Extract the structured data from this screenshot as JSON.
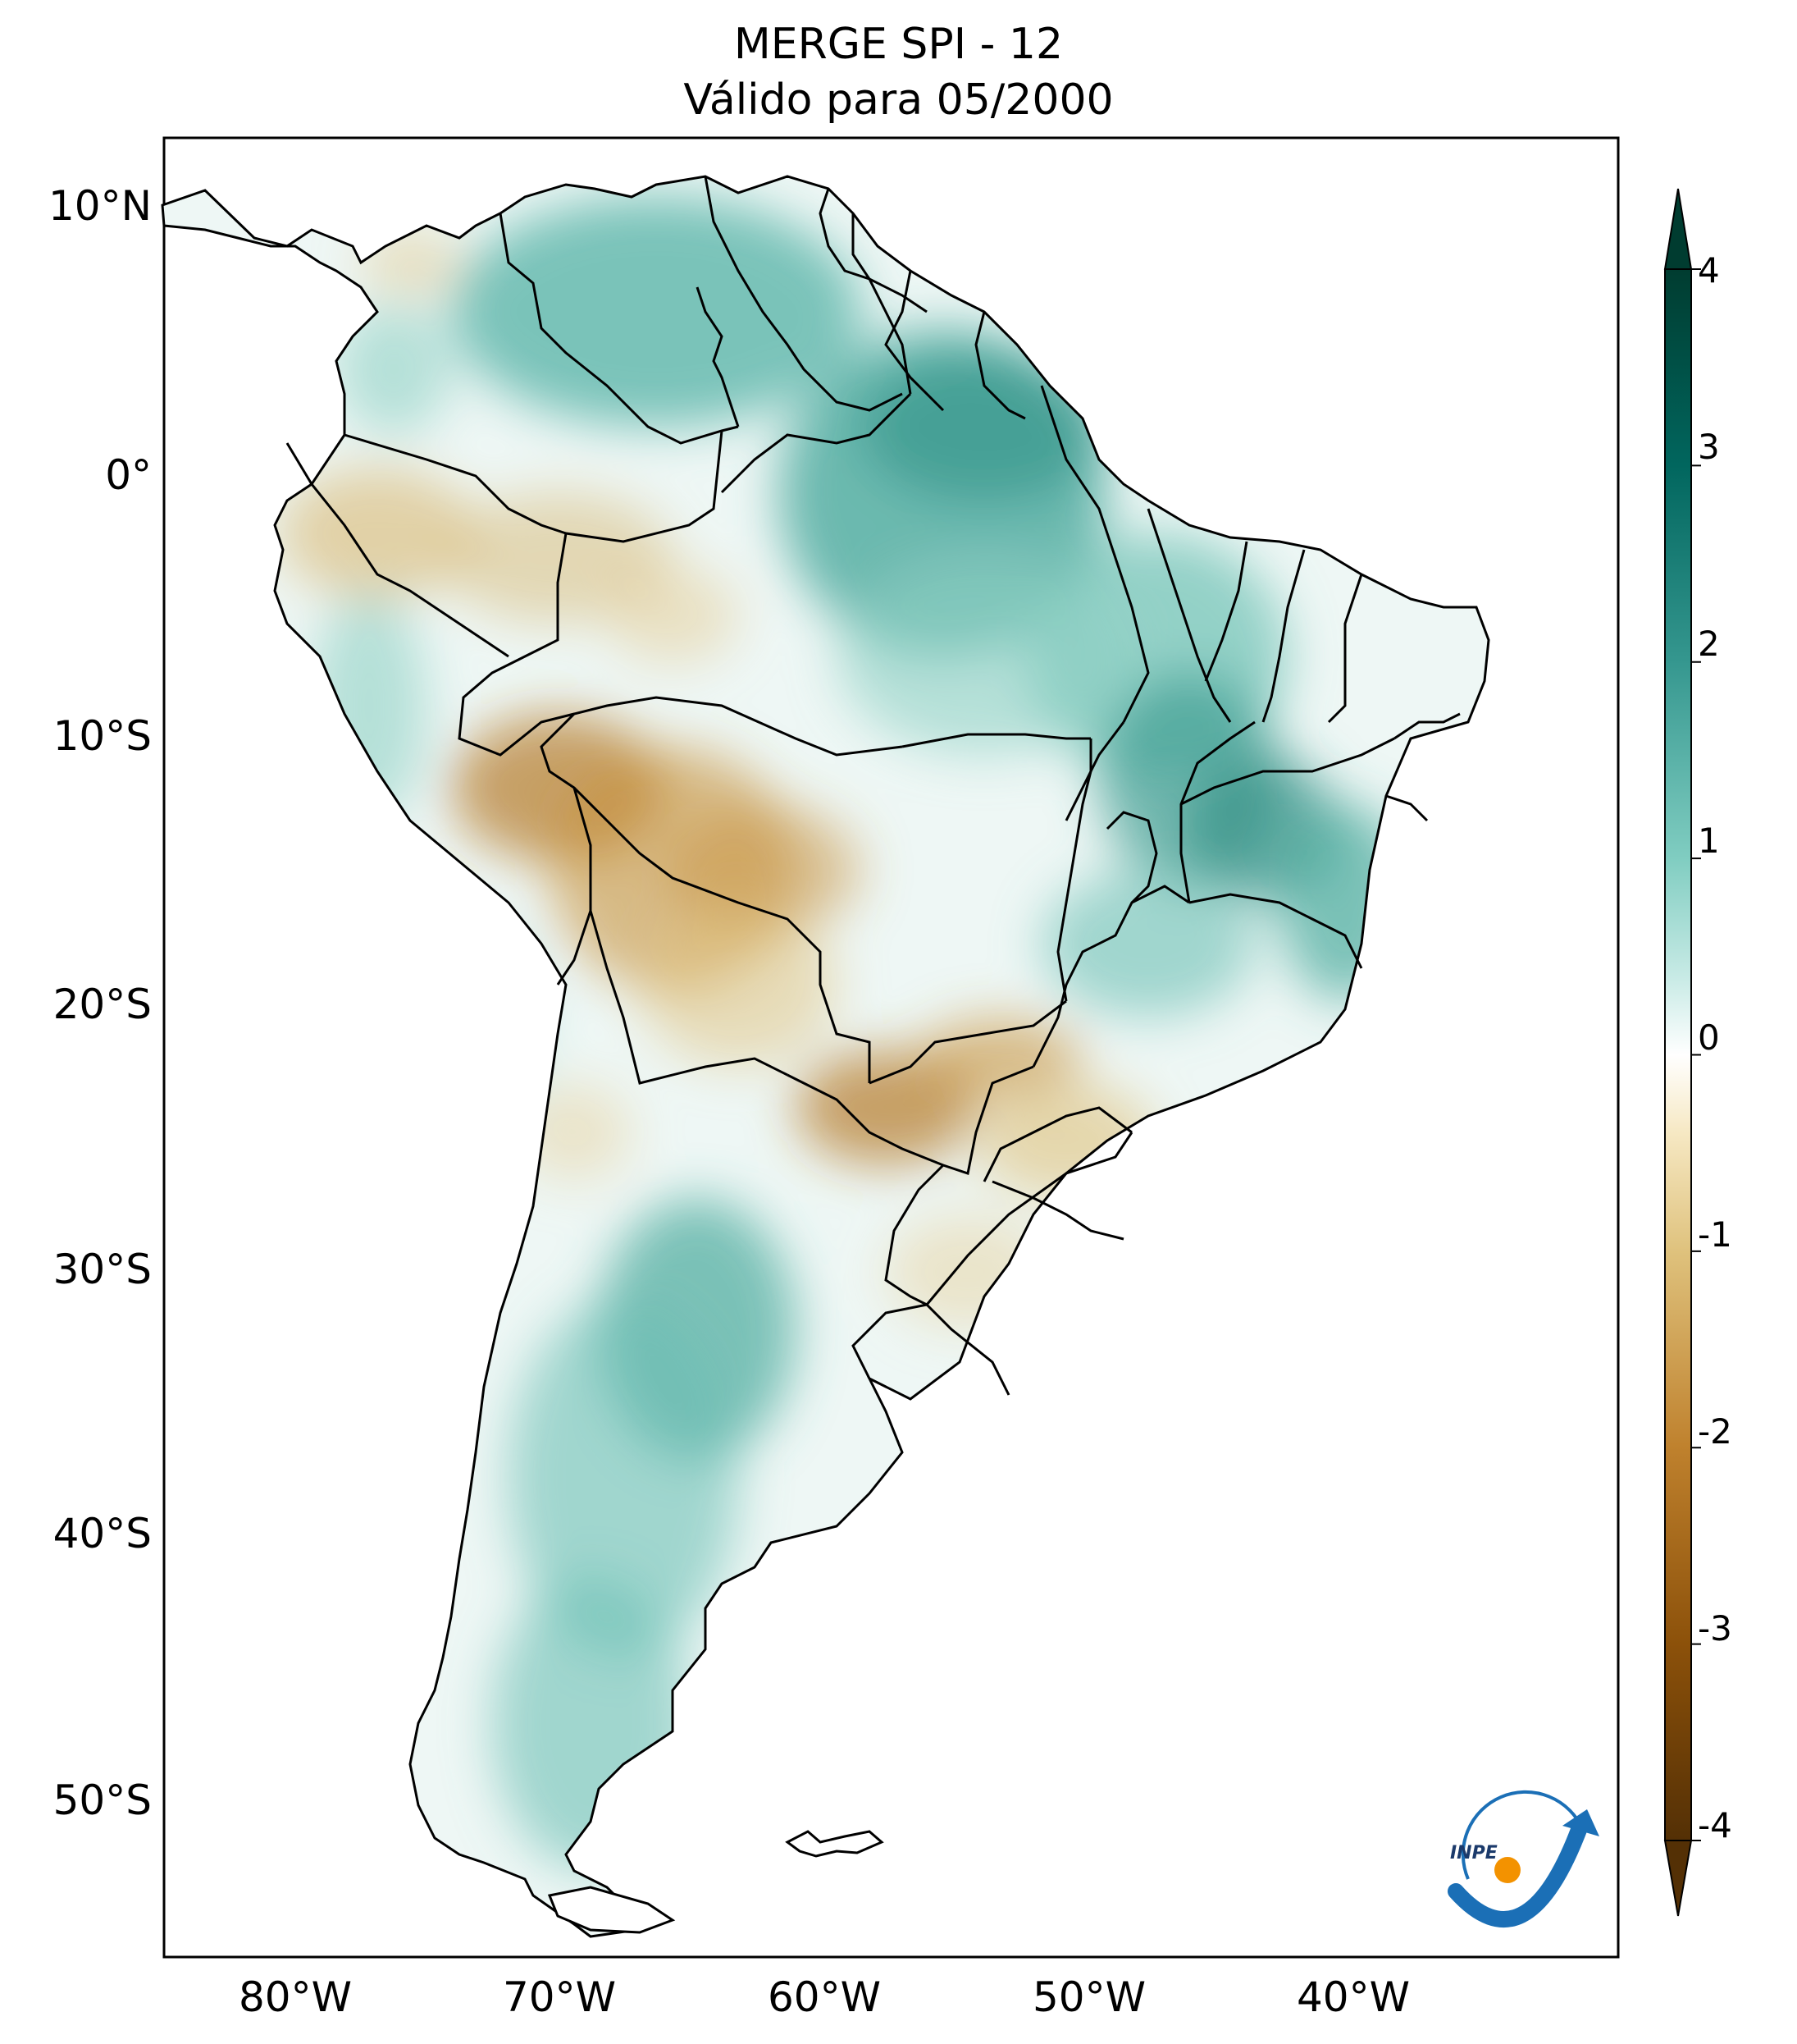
{
  "title": {
    "line1": "MERGE   SPI - 12",
    "line2": "Válido para 05/2000"
  },
  "map": {
    "latitude_labels": [
      "10°N",
      "0°",
      "10°S",
      "20°S",
      "30°S",
      "40°S",
      "50°S"
    ],
    "longitude_labels": [
      "80°W",
      "70°W",
      "60°W",
      "50°W",
      "40°W"
    ],
    "boundary_color": "#000000"
  },
  "colorbar": {
    "ticks": [
      "4",
      "3",
      "2",
      "1",
      "0",
      "-1",
      "-2",
      "-3",
      "-4"
    ],
    "range": [
      -4,
      4
    ],
    "extend": "both",
    "colormap": [
      "#543005",
      "#8c510a",
      "#bf812d",
      "#dfc27d",
      "#f6e8c3",
      "#ffffff",
      "#c7eae5",
      "#80cdc1",
      "#35978f",
      "#01665e",
      "#003c30"
    ]
  },
  "logo": {
    "text": "INPE",
    "arrow_color": "#1b6fb6",
    "dot_color": "#f39200"
  }
}
